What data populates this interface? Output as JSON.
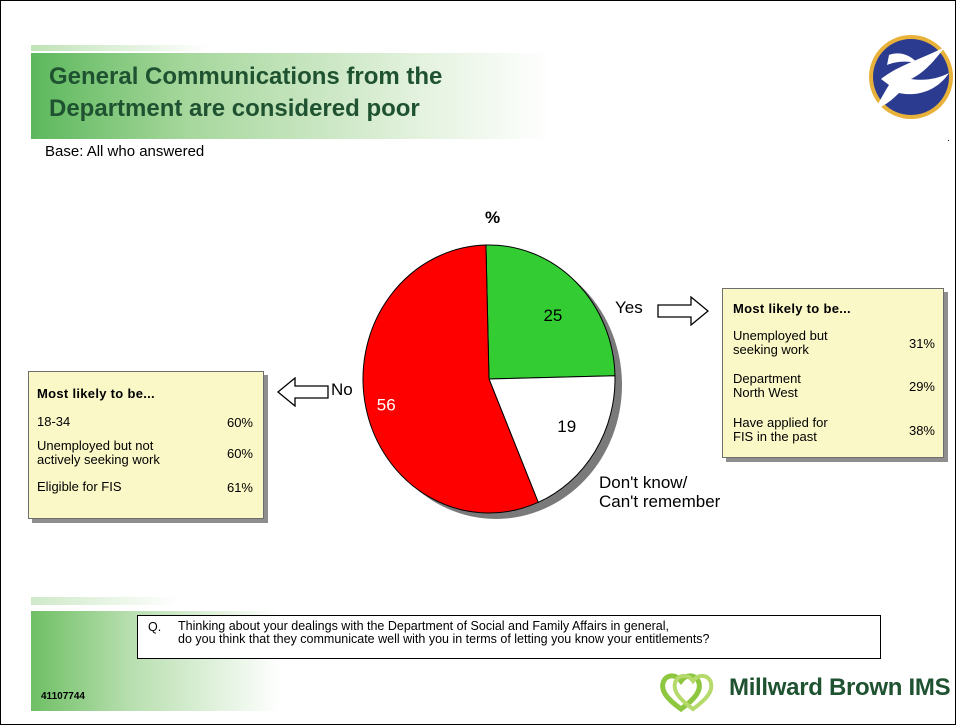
{
  "slide": {
    "title_line1": "General Communications from the",
    "title_line2": "Department are considered poor",
    "base": "Base: All who answered",
    "code": "41107744",
    "edge_mark": "."
  },
  "chart_data": {
    "type": "pie",
    "title": "%",
    "slices": [
      {
        "name": "Yes",
        "value": 25,
        "color": "#33cc33"
      },
      {
        "name": "Don't know/ Can't remember",
        "value": 19,
        "color": "#ffffff"
      },
      {
        "name": "No",
        "value": 56,
        "color": "#ff0000"
      }
    ],
    "labels": {
      "yes": "Yes",
      "no": "No",
      "dk_line1": "Don't know/",
      "dk_line2": "Can't remember"
    },
    "value_labels": {
      "yes": "25",
      "dk": "19",
      "no": "56"
    }
  },
  "left_box": {
    "header": "Most likely to be...",
    "rows": [
      {
        "label_line1": "18-34",
        "label_line2": "",
        "value": "60%"
      },
      {
        "label_line1": "Unemployed but not",
        "label_line2": "actively seeking work",
        "value": "60%"
      },
      {
        "label_line1": "Eligible for FIS",
        "label_line2": "",
        "value": "61%"
      }
    ]
  },
  "right_box": {
    "header": "Most likely to be...",
    "rows": [
      {
        "label_line1": "Unemployed but",
        "label_line2": "seeking work",
        "value": "31%"
      },
      {
        "label_line1": "Department",
        "label_line2": "North West",
        "value": "29%"
      },
      {
        "label_line1": "Have applied for",
        "label_line2": "FIS in the past",
        "value": "38%"
      }
    ]
  },
  "question": {
    "marker": "Q.",
    "line1": "Thinking about your dealings with the Department of Social and Family Affairs in general,",
    "line2": "do you think that they communicate well with you in terms of letting you know your entitlements?"
  },
  "brand": {
    "name": "Millward Brown IMS",
    "primary_color": "#1f5230",
    "accent_color": "#8dc63f",
    "logo_icon": "dove-emblem-icon"
  }
}
